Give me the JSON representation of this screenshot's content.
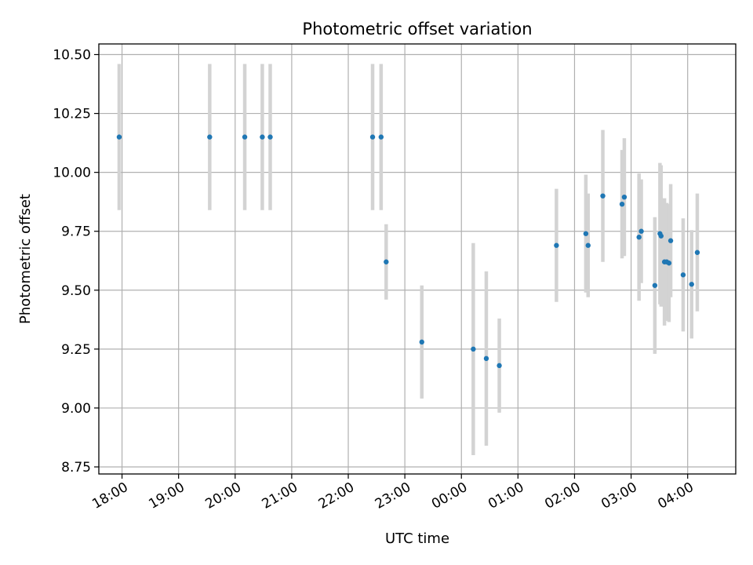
{
  "chart_data": {
    "type": "scatter",
    "title": "Photometric offset variation",
    "xlabel": "UTC time",
    "ylabel": "Photometric offset",
    "grid": true,
    "legend": "none",
    "x_unit": "hours since 00:00 UTC (first day)",
    "xlim": [
      17.59,
      28.85
    ],
    "ylim": [
      8.72,
      10.545
    ],
    "x_ticks": [
      {
        "value": 18,
        "label": "18:00"
      },
      {
        "value": 19,
        "label": "19:00"
      },
      {
        "value": 20,
        "label": "20:00"
      },
      {
        "value": 21,
        "label": "21:00"
      },
      {
        "value": 22,
        "label": "22:00"
      },
      {
        "value": 23,
        "label": "23:00"
      },
      {
        "value": 24,
        "label": "00:00"
      },
      {
        "value": 25,
        "label": "01:00"
      },
      {
        "value": 26,
        "label": "02:00"
      },
      {
        "value": 27,
        "label": "03:00"
      },
      {
        "value": 28,
        "label": "04:00"
      }
    ],
    "y_ticks": [
      {
        "value": 8.75,
        "label": "8.75"
      },
      {
        "value": 9.0,
        "label": "9.00"
      },
      {
        "value": 9.25,
        "label": "9.25"
      },
      {
        "value": 9.5,
        "label": "9.50"
      },
      {
        "value": 9.75,
        "label": "9.75"
      },
      {
        "value": 10.0,
        "label": "10.00"
      },
      {
        "value": 10.25,
        "label": "10.25"
      },
      {
        "value": 10.5,
        "label": "10.50"
      }
    ],
    "colors": {
      "point": "#1f77b4",
      "errorbar": "#d3d3d3",
      "grid": "#b0b0b0"
    },
    "points": [
      {
        "x": 17.95,
        "y": 10.15,
        "err": 0.31
      },
      {
        "x": 19.55,
        "y": 10.15,
        "err": 0.31
      },
      {
        "x": 20.17,
        "y": 10.15,
        "err": 0.31
      },
      {
        "x": 20.48,
        "y": 10.15,
        "err": 0.31
      },
      {
        "x": 20.62,
        "y": 10.15,
        "err": 0.31
      },
      {
        "x": 22.43,
        "y": 10.15,
        "err": 0.31
      },
      {
        "x": 22.58,
        "y": 10.15,
        "err": 0.31
      },
      {
        "x": 22.67,
        "y": 9.62,
        "err": 0.16
      },
      {
        "x": 23.3,
        "y": 9.28,
        "err": 0.24
      },
      {
        "x": 24.21,
        "y": 9.25,
        "err": 0.45
      },
      {
        "x": 24.44,
        "y": 9.21,
        "err": 0.37
      },
      {
        "x": 24.67,
        "y": 9.18,
        "err": 0.2
      },
      {
        "x": 25.68,
        "y": 9.69,
        "err": 0.24
      },
      {
        "x": 26.2,
        "y": 9.74,
        "err": 0.25
      },
      {
        "x": 26.24,
        "y": 9.69,
        "err": 0.22
      },
      {
        "x": 26.5,
        "y": 9.9,
        "err": 0.28
      },
      {
        "x": 26.84,
        "y": 9.865,
        "err": 0.23
      },
      {
        "x": 26.88,
        "y": 9.895,
        "err": 0.25
      },
      {
        "x": 27.14,
        "y": 9.725,
        "err": 0.27
      },
      {
        "x": 27.18,
        "y": 9.75,
        "err": 0.22
      },
      {
        "x": 27.42,
        "y": 9.52,
        "err": 0.29
      },
      {
        "x": 27.51,
        "y": 9.74,
        "err": 0.3
      },
      {
        "x": 27.53,
        "y": 9.73,
        "err": 0.3
      },
      {
        "x": 27.59,
        "y": 9.62,
        "err": 0.27
      },
      {
        "x": 27.63,
        "y": 9.62,
        "err": 0.25
      },
      {
        "x": 27.67,
        "y": 9.615,
        "err": 0.25
      },
      {
        "x": 27.7,
        "y": 9.71,
        "err": 0.24
      },
      {
        "x": 27.92,
        "y": 9.565,
        "err": 0.24
      },
      {
        "x": 28.07,
        "y": 9.525,
        "err": 0.23
      },
      {
        "x": 28.17,
        "y": 9.66,
        "err": 0.25
      }
    ]
  }
}
